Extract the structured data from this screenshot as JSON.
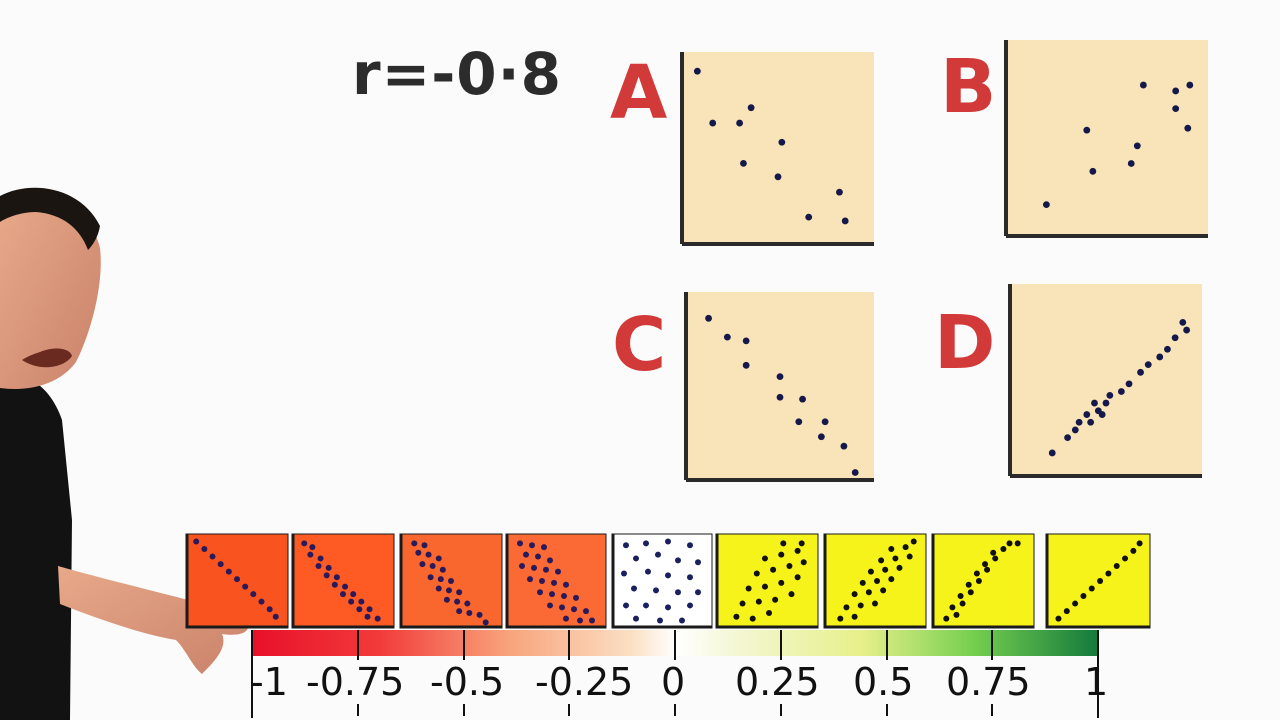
{
  "title": "r=-0·8",
  "plots": [
    {
      "letter": "A",
      "points": [
        [
          0.08,
          0.1
        ],
        [
          0.16,
          0.37
        ],
        [
          0.3,
          0.37
        ],
        [
          0.36,
          0.29
        ],
        [
          0.52,
          0.47
        ],
        [
          0.32,
          0.58
        ],
        [
          0.5,
          0.65
        ],
        [
          0.82,
          0.73
        ],
        [
          0.66,
          0.86
        ],
        [
          0.85,
          0.88
        ]
      ]
    },
    {
      "letter": "B",
      "points": [
        [
          0.2,
          0.84
        ],
        [
          0.4,
          0.46
        ],
        [
          0.43,
          0.67
        ],
        [
          0.62,
          0.63
        ],
        [
          0.65,
          0.54
        ],
        [
          0.68,
          0.23
        ],
        [
          0.84,
          0.35
        ],
        [
          0.9,
          0.45
        ],
        [
          0.84,
          0.26
        ],
        [
          0.91,
          0.23
        ]
      ]
    },
    {
      "letter": "C",
      "points": [
        [
          0.12,
          0.14
        ],
        [
          0.22,
          0.24
        ],
        [
          0.32,
          0.26
        ],
        [
          0.32,
          0.39
        ],
        [
          0.5,
          0.45
        ],
        [
          0.5,
          0.56
        ],
        [
          0.62,
          0.57
        ],
        [
          0.6,
          0.69
        ],
        [
          0.72,
          0.77
        ],
        [
          0.74,
          0.69
        ],
        [
          0.84,
          0.82
        ],
        [
          0.9,
          0.96
        ]
      ]
    },
    {
      "letter": "D",
      "points": [
        [
          0.22,
          0.88
        ],
        [
          0.3,
          0.8
        ],
        [
          0.34,
          0.76
        ],
        [
          0.36,
          0.72
        ],
        [
          0.4,
          0.68
        ],
        [
          0.42,
          0.72
        ],
        [
          0.46,
          0.66
        ],
        [
          0.5,
          0.62
        ],
        [
          0.52,
          0.58
        ],
        [
          0.58,
          0.56
        ],
        [
          0.62,
          0.52
        ],
        [
          0.68,
          0.46
        ],
        [
          0.72,
          0.42
        ],
        [
          0.78,
          0.38
        ],
        [
          0.82,
          0.34
        ],
        [
          0.86,
          0.28
        ],
        [
          0.9,
          0.2
        ],
        [
          0.92,
          0.24
        ],
        [
          0.48,
          0.68
        ],
        [
          0.44,
          0.62
        ]
      ]
    }
  ],
  "tiles": [
    {
      "color": "#f9531f",
      "points": [
        [
          0.1,
          0.08
        ],
        [
          0.18,
          0.16
        ],
        [
          0.26,
          0.24
        ],
        [
          0.34,
          0.32
        ],
        [
          0.42,
          0.4
        ],
        [
          0.5,
          0.48
        ],
        [
          0.58,
          0.56
        ],
        [
          0.66,
          0.64
        ],
        [
          0.74,
          0.72
        ],
        [
          0.82,
          0.8
        ],
        [
          0.88,
          0.88
        ]
      ]
    },
    {
      "color": "#fd5a24",
      "points": [
        [
          0.12,
          0.1
        ],
        [
          0.2,
          0.14
        ],
        [
          0.18,
          0.22
        ],
        [
          0.28,
          0.26
        ],
        [
          0.26,
          0.34
        ],
        [
          0.36,
          0.36
        ],
        [
          0.34,
          0.44
        ],
        [
          0.44,
          0.46
        ],
        [
          0.42,
          0.54
        ],
        [
          0.52,
          0.56
        ],
        [
          0.5,
          0.64
        ],
        [
          0.6,
          0.64
        ],
        [
          0.58,
          0.72
        ],
        [
          0.68,
          0.72
        ],
        [
          0.66,
          0.8
        ],
        [
          0.76,
          0.8
        ],
        [
          0.74,
          0.88
        ],
        [
          0.84,
          0.9
        ]
      ]
    },
    {
      "color": "#f9662e",
      "points": [
        [
          0.14,
          0.1
        ],
        [
          0.24,
          0.12
        ],
        [
          0.18,
          0.2
        ],
        [
          0.28,
          0.22
        ],
        [
          0.38,
          0.26
        ],
        [
          0.22,
          0.32
        ],
        [
          0.32,
          0.34
        ],
        [
          0.42,
          0.38
        ],
        [
          0.3,
          0.46
        ],
        [
          0.4,
          0.48
        ],
        [
          0.5,
          0.5
        ],
        [
          0.38,
          0.58
        ],
        [
          0.48,
          0.6
        ],
        [
          0.58,
          0.62
        ],
        [
          0.46,
          0.7
        ],
        [
          0.56,
          0.72
        ],
        [
          0.66,
          0.74
        ],
        [
          0.58,
          0.82
        ],
        [
          0.68,
          0.84
        ],
        [
          0.78,
          0.86
        ],
        [
          0.84,
          0.94
        ]
      ]
    },
    {
      "color": "#fb6a34",
      "points": [
        [
          0.14,
          0.1
        ],
        [
          0.26,
          0.12
        ],
        [
          0.38,
          0.14
        ],
        [
          0.2,
          0.22
        ],
        [
          0.32,
          0.24
        ],
        [
          0.44,
          0.28
        ],
        [
          0.16,
          0.34
        ],
        [
          0.28,
          0.36
        ],
        [
          0.4,
          0.38
        ],
        [
          0.52,
          0.4
        ],
        [
          0.24,
          0.48
        ],
        [
          0.36,
          0.5
        ],
        [
          0.48,
          0.52
        ],
        [
          0.6,
          0.54
        ],
        [
          0.34,
          0.62
        ],
        [
          0.46,
          0.64
        ],
        [
          0.58,
          0.66
        ],
        [
          0.7,
          0.68
        ],
        [
          0.44,
          0.76
        ],
        [
          0.56,
          0.78
        ],
        [
          0.68,
          0.8
        ],
        [
          0.8,
          0.82
        ],
        [
          0.6,
          0.9
        ],
        [
          0.74,
          0.92
        ],
        [
          0.86,
          0.92
        ]
      ]
    },
    {
      "color": "#ffffff",
      "points": [
        [
          0.14,
          0.12
        ],
        [
          0.34,
          0.1
        ],
        [
          0.56,
          0.08
        ],
        [
          0.78,
          0.12
        ],
        [
          0.24,
          0.26
        ],
        [
          0.46,
          0.22
        ],
        [
          0.66,
          0.28
        ],
        [
          0.86,
          0.3
        ],
        [
          0.12,
          0.42
        ],
        [
          0.36,
          0.4
        ],
        [
          0.56,
          0.44
        ],
        [
          0.78,
          0.46
        ],
        [
          0.22,
          0.58
        ],
        [
          0.44,
          0.6
        ],
        [
          0.66,
          0.62
        ],
        [
          0.86,
          0.62
        ],
        [
          0.14,
          0.76
        ],
        [
          0.34,
          0.76
        ],
        [
          0.56,
          0.78
        ],
        [
          0.78,
          0.76
        ],
        [
          0.24,
          0.9
        ],
        [
          0.48,
          0.92
        ],
        [
          0.7,
          0.92
        ]
      ]
    },
    {
      "color": "#f6f31a",
      "points": [
        [
          0.2,
          0.88
        ],
        [
          0.36,
          0.9
        ],
        [
          0.52,
          0.84
        ],
        [
          0.26,
          0.74
        ],
        [
          0.42,
          0.72
        ],
        [
          0.58,
          0.7
        ],
        [
          0.74,
          0.64
        ],
        [
          0.32,
          0.58
        ],
        [
          0.48,
          0.56
        ],
        [
          0.64,
          0.52
        ],
        [
          0.8,
          0.46
        ],
        [
          0.4,
          0.42
        ],
        [
          0.56,
          0.38
        ],
        [
          0.72,
          0.34
        ],
        [
          0.86,
          0.3
        ],
        [
          0.48,
          0.26
        ],
        [
          0.64,
          0.22
        ],
        [
          0.8,
          0.18
        ],
        [
          0.66,
          0.1
        ],
        [
          0.84,
          0.1
        ]
      ]
    },
    {
      "color": "#f6f31a",
      "points": [
        [
          0.16,
          0.9
        ],
        [
          0.3,
          0.88
        ],
        [
          0.22,
          0.78
        ],
        [
          0.36,
          0.76
        ],
        [
          0.5,
          0.74
        ],
        [
          0.3,
          0.64
        ],
        [
          0.44,
          0.62
        ],
        [
          0.58,
          0.6
        ],
        [
          0.38,
          0.52
        ],
        [
          0.52,
          0.5
        ],
        [
          0.66,
          0.48
        ],
        [
          0.46,
          0.4
        ],
        [
          0.6,
          0.38
        ],
        [
          0.74,
          0.36
        ],
        [
          0.56,
          0.28
        ],
        [
          0.7,
          0.26
        ],
        [
          0.84,
          0.24
        ],
        [
          0.66,
          0.16
        ],
        [
          0.8,
          0.14
        ],
        [
          0.88,
          0.08
        ]
      ]
    },
    {
      "color": "#f6f31a",
      "points": [
        [
          0.14,
          0.9
        ],
        [
          0.24,
          0.86
        ],
        [
          0.2,
          0.78
        ],
        [
          0.3,
          0.74
        ],
        [
          0.28,
          0.66
        ],
        [
          0.38,
          0.62
        ],
        [
          0.36,
          0.54
        ],
        [
          0.46,
          0.5
        ],
        [
          0.44,
          0.42
        ],
        [
          0.54,
          0.38
        ],
        [
          0.52,
          0.32
        ],
        [
          0.62,
          0.26
        ],
        [
          0.6,
          0.2
        ],
        [
          0.7,
          0.16
        ],
        [
          0.76,
          0.1
        ],
        [
          0.84,
          0.1
        ]
      ]
    },
    {
      "color": "#f6f31a",
      "points": [
        [
          0.12,
          0.9
        ],
        [
          0.2,
          0.82
        ],
        [
          0.28,
          0.74
        ],
        [
          0.36,
          0.66
        ],
        [
          0.44,
          0.58
        ],
        [
          0.52,
          0.5
        ],
        [
          0.6,
          0.42
        ],
        [
          0.68,
          0.34
        ],
        [
          0.76,
          0.26
        ],
        [
          0.84,
          0.18
        ],
        [
          0.9,
          0.1
        ]
      ]
    }
  ],
  "scale": {
    "ticks": [
      -1,
      -0.75,
      -0.5,
      -0.25,
      0,
      0.25,
      0.5,
      0.75,
      1
    ],
    "labels": [
      "-1",
      "-0.75",
      "-0.5",
      "-0.25",
      "0",
      "0.25",
      "0.5",
      "0.75",
      "1"
    ]
  }
}
